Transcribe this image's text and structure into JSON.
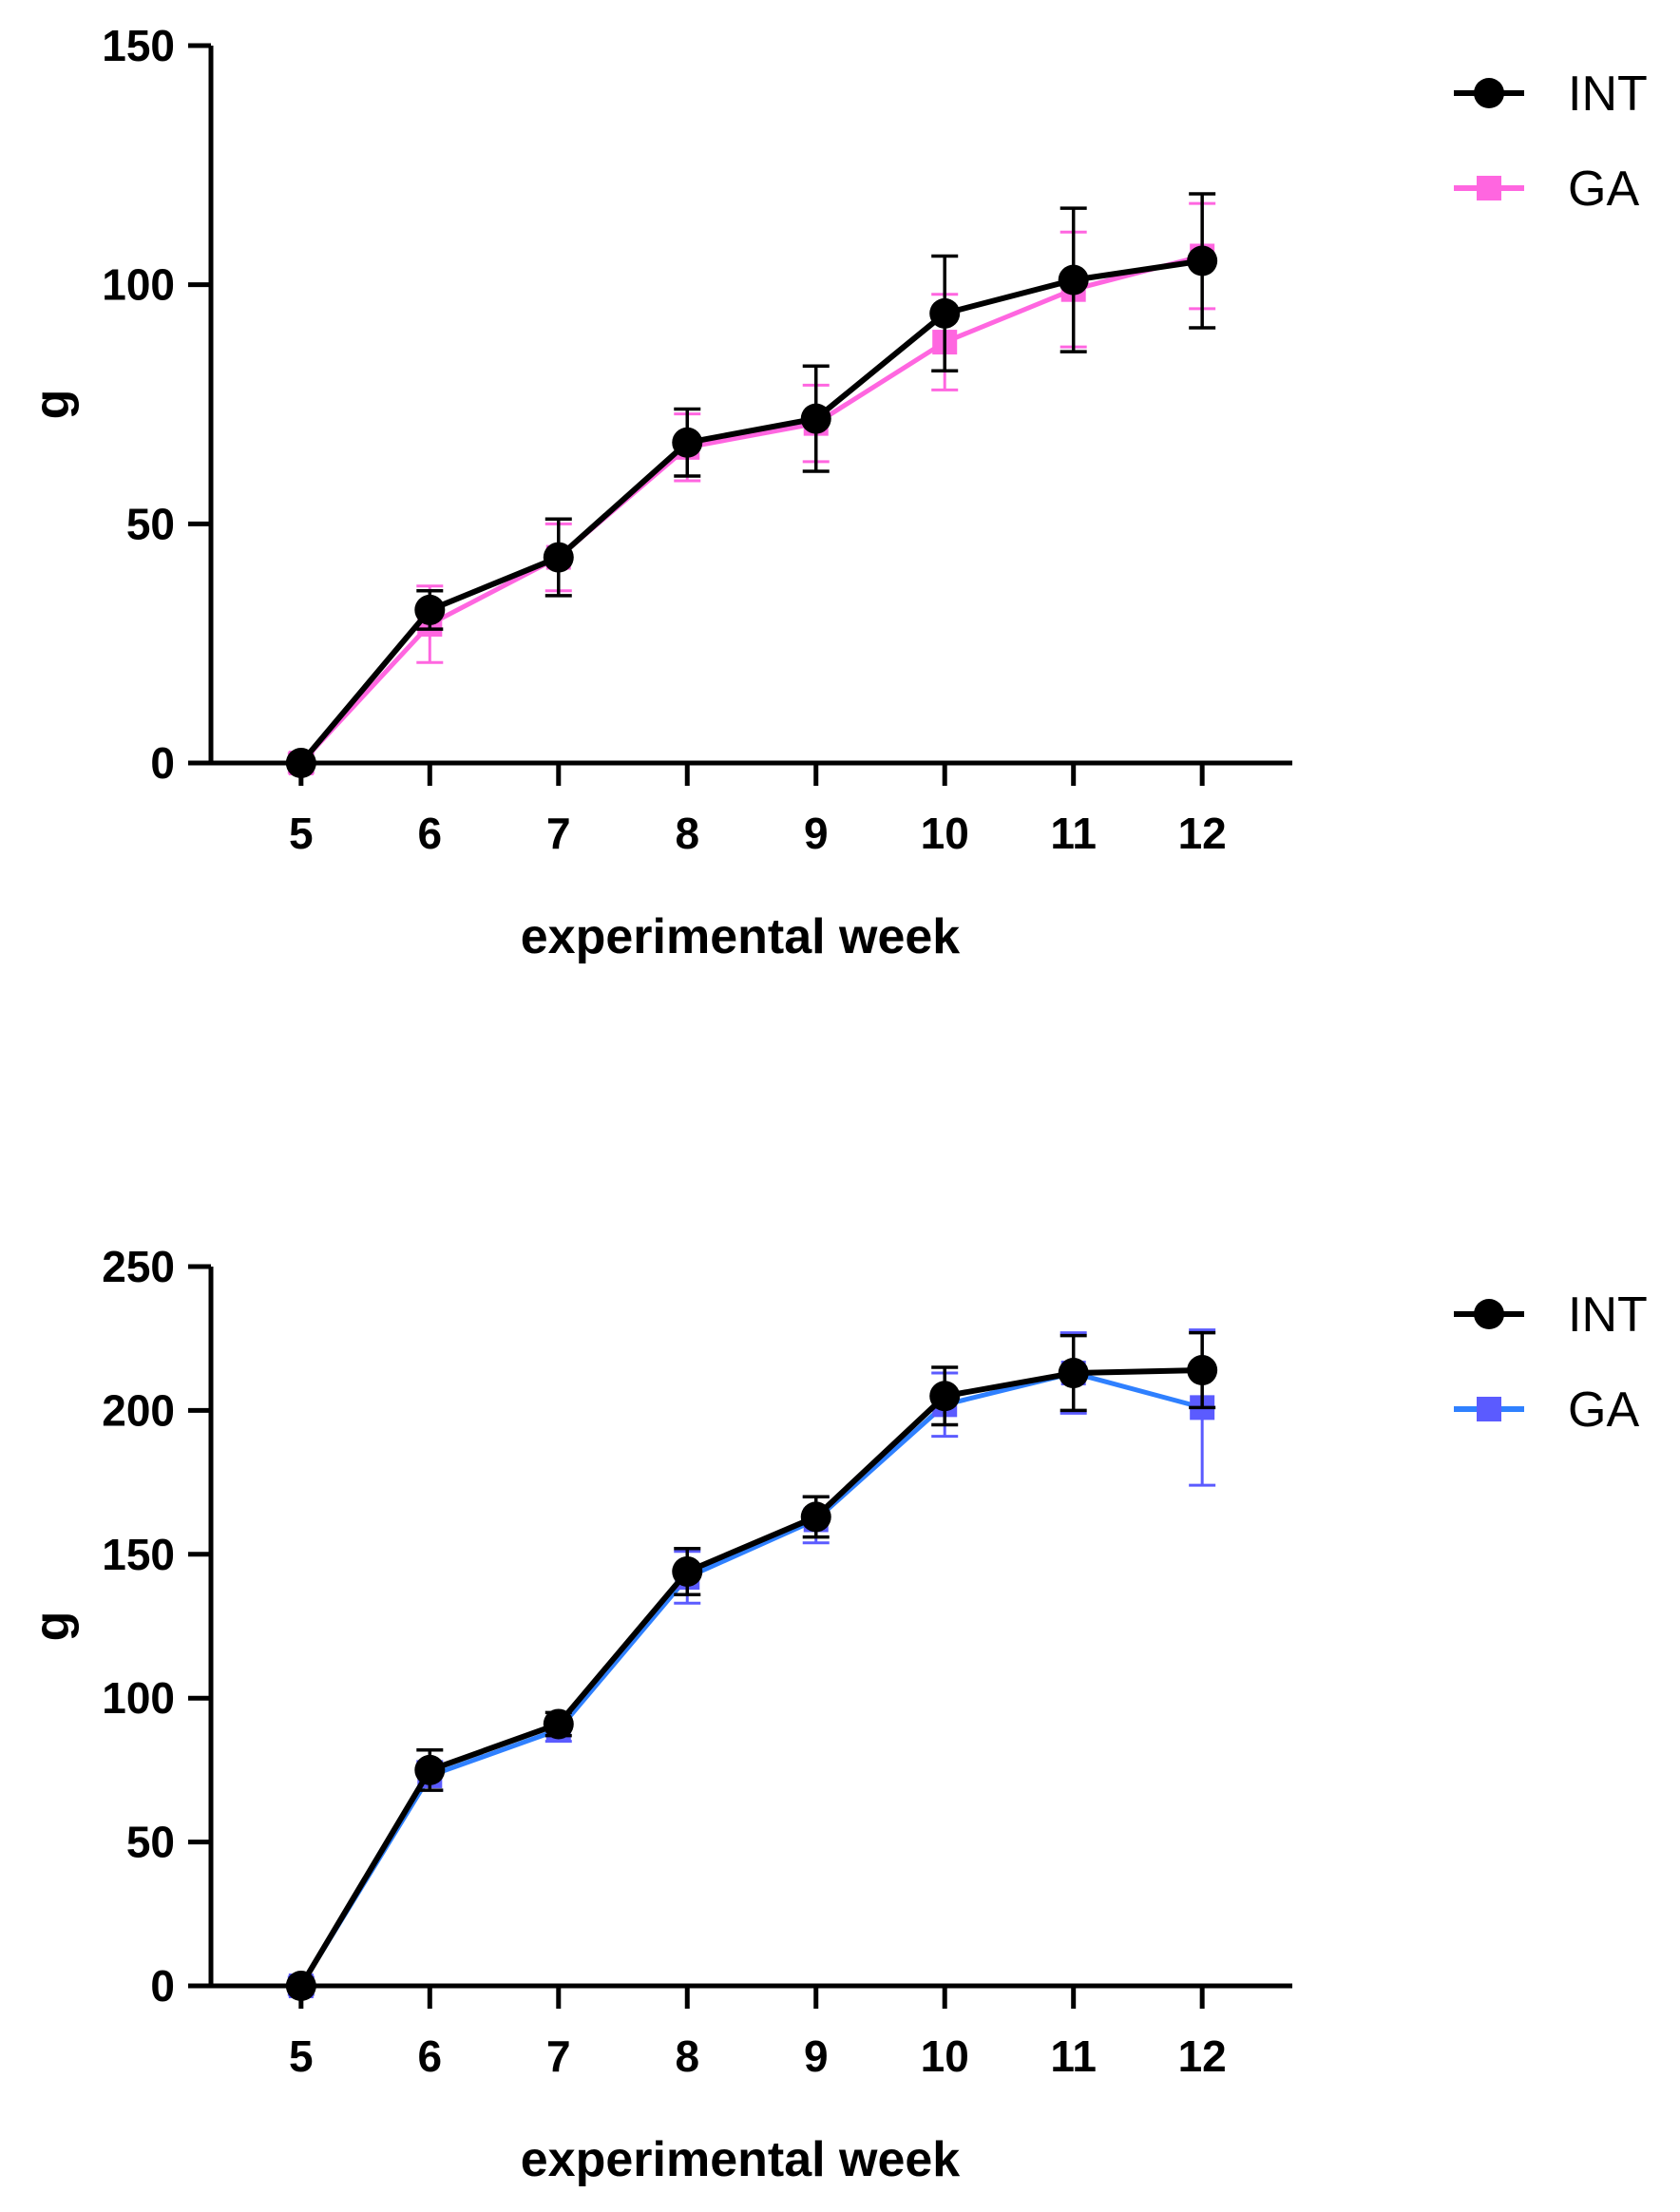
{
  "chart_data": [
    {
      "type": "line",
      "panel": "top",
      "title": "",
      "xlabel": "experimental week",
      "ylabel": "g",
      "x": [
        5,
        6,
        7,
        8,
        9,
        10,
        11,
        12
      ],
      "xlim": [
        4.3,
        12.7
      ],
      "ylim": [
        0,
        150
      ],
      "yticks": [
        0,
        50,
        100,
        150
      ],
      "grid": false,
      "legend": "top-right",
      "series": [
        {
          "name": "GA",
          "color": "#ff66e0",
          "marker": "square",
          "values": [
            0,
            29,
            43,
            66,
            71,
            88,
            99,
            106
          ],
          "errors": [
            2,
            8,
            7,
            7,
            8,
            10,
            12,
            11
          ]
        },
        {
          "name": "INT",
          "color": "#000000",
          "marker": "circle",
          "values": [
            0,
            32,
            43,
            67,
            72,
            94,
            101,
            105
          ],
          "errors": [
            0,
            4,
            8,
            7,
            11,
            12,
            15,
            14
          ]
        }
      ]
    },
    {
      "type": "line",
      "panel": "bottom",
      "title": "",
      "xlabel": "experimental week",
      "ylabel": "g",
      "x": [
        5,
        6,
        7,
        8,
        9,
        10,
        11,
        12
      ],
      "xlim": [
        4.3,
        12.7
      ],
      "ylim": [
        0,
        250
      ],
      "yticks": [
        0,
        50,
        100,
        150,
        200,
        250
      ],
      "grid": false,
      "legend": "top-right",
      "series": [
        {
          "name": "GA",
          "color": "#2f80ff",
          "marker": "square",
          "marker_color": "#5b5bff",
          "values": [
            0,
            73,
            89,
            142,
            162,
            202,
            213,
            201
          ],
          "errors": [
            3,
            5,
            4,
            9,
            8,
            11,
            14,
            27
          ]
        },
        {
          "name": "INT",
          "color": "#000000",
          "marker": "circle",
          "values": [
            0,
            75,
            91,
            144,
            163,
            205,
            213,
            214
          ],
          "errors": [
            0,
            7,
            4,
            8,
            7,
            10,
            13,
            13
          ]
        }
      ]
    }
  ]
}
